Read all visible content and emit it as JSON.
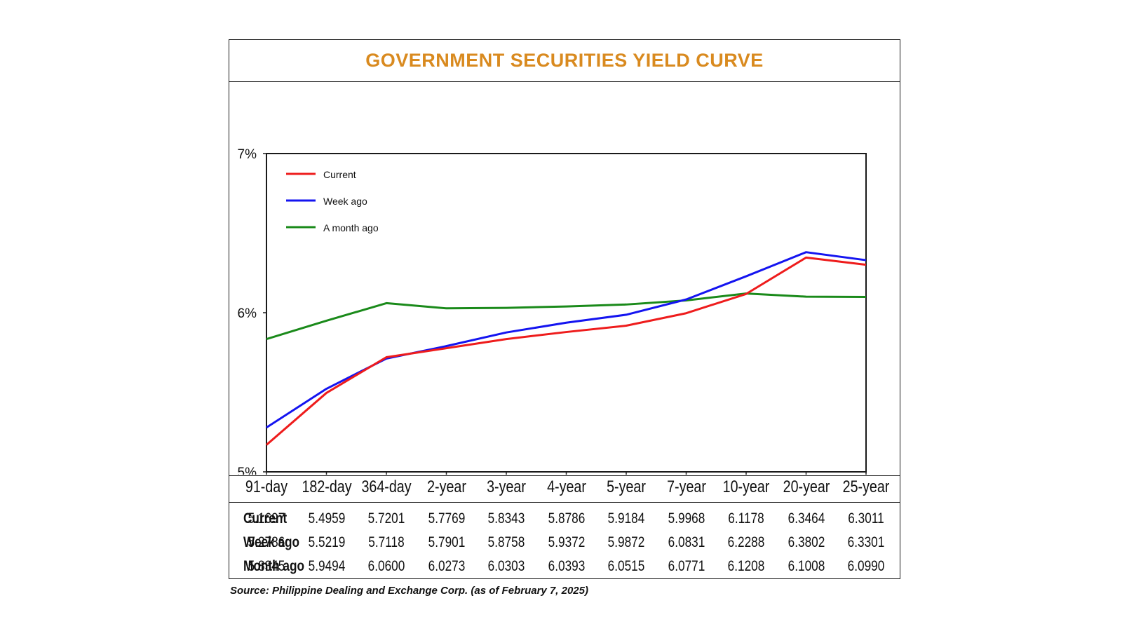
{
  "title": "GOVERNMENT SECURITIES YIELD CURVE",
  "source": "Source: Philippine Dealing and Exchange Corp. (as of February 7, 2025)",
  "colors": {
    "title": "#d98a1f",
    "current": "#ee1c1c",
    "week_ago": "#1414f0",
    "month_ago": "#1a8a1a"
  },
  "chart_data": {
    "type": "line",
    "title": "GOVERNMENT SECURITIES YIELD CURVE",
    "categories": [
      "91-day",
      "182-day",
      "364-day",
      "2-year",
      "3-year",
      "4-year",
      "5-year",
      "7-year",
      "10-year",
      "20-year",
      "25-year"
    ],
    "y_ticks": [
      "5%",
      "6%",
      "7%"
    ],
    "y_tick_values": [
      5,
      6,
      7
    ],
    "ylim": [
      5,
      7
    ],
    "legend_position": "top-left",
    "series": [
      {
        "name": "Current",
        "color": "#ee1c1c",
        "values": [
          5.1697,
          5.4959,
          5.7201,
          5.7769,
          5.8343,
          5.8786,
          5.9184,
          5.9968,
          6.1178,
          6.3464,
          6.3011
        ]
      },
      {
        "name": "Week ago",
        "color": "#1414f0",
        "values": [
          5.2786,
          5.5219,
          5.7118,
          5.7901,
          5.8758,
          5.9372,
          5.9872,
          6.0831,
          6.2288,
          6.3802,
          6.3301
        ]
      },
      {
        "name": "A month ago",
        "color": "#1a8a1a",
        "values": [
          5.8345,
          5.9494,
          6.06,
          6.0273,
          6.0303,
          6.0393,
          6.0515,
          6.0771,
          6.1208,
          6.1008,
          6.099
        ]
      }
    ]
  },
  "table": {
    "headers": [
      "91-day",
      "182-day",
      "364-day",
      "2-year",
      "3-year",
      "4-year",
      "5-year",
      "7-year",
      "10-year",
      "20-year",
      "25-year"
    ],
    "rows": [
      {
        "label": "Current",
        "values": [
          "5.1697",
          "5.4959",
          "5.7201",
          "5.7769",
          "5.8343",
          "5.8786",
          "5.9184",
          "5.9968",
          "6.1178",
          "6.3464",
          "6.3011"
        ]
      },
      {
        "label": "Week ago",
        "values": [
          "5.2786",
          "5.5219",
          "5.7118",
          "5.7901",
          "5.8758",
          "5.9372",
          "5.9872",
          "6.0831",
          "6.2288",
          "6.3802",
          "6.3301"
        ]
      },
      {
        "label": "Month ago",
        "values": [
          "5.8345",
          "5.9494",
          "6.0600",
          "6.0273",
          "6.0303",
          "6.0393",
          "6.0515",
          "6.0771",
          "6.1208",
          "6.1008",
          "6.0990"
        ]
      }
    ]
  }
}
